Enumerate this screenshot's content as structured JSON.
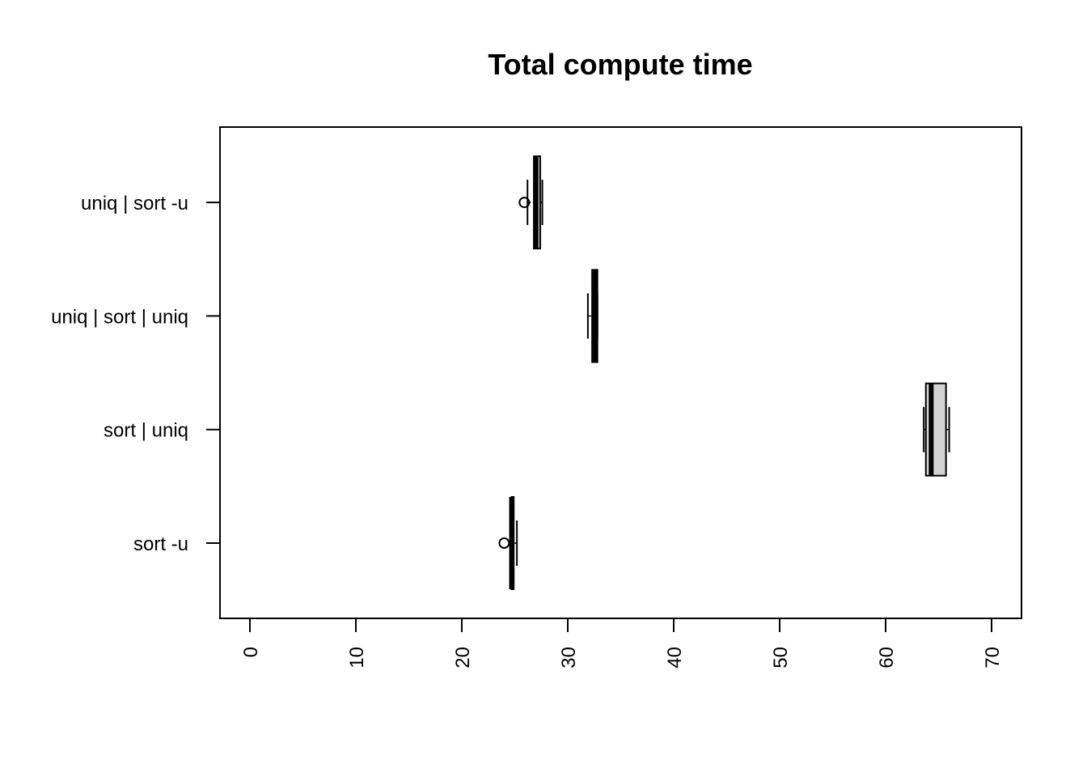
{
  "chart_data": {
    "type": "boxplot",
    "orientation": "horizontal",
    "title": "Total compute time",
    "xlabel": "",
    "ylabel": "",
    "xlim": [
      0,
      70
    ],
    "x_ticks": [
      0,
      10,
      20,
      30,
      40,
      50,
      60,
      70
    ],
    "x_tick_labels": [
      "0",
      "10",
      "20",
      "30",
      "40",
      "50",
      "60",
      "70"
    ],
    "grid": false,
    "box_fill": "#d3d3d3",
    "categories": [
      "sort -u",
      "sort | uniq",
      "uniq | sort | uniq",
      "uniq | sort -u"
    ],
    "boxes": [
      {
        "label": "sort -u",
        "whisker_low": 24.7,
        "q1": 24.7,
        "median": 24.7,
        "q3": 24.9,
        "whisker_high": 25.2,
        "outliers": [
          24.0
        ]
      },
      {
        "label": "sort | uniq",
        "whisker_low": 63.6,
        "q1": 63.8,
        "median": 64.3,
        "q3": 65.7,
        "whisker_high": 66.0,
        "outliers": []
      },
      {
        "label": "uniq | sort | uniq",
        "whisker_low": 31.9,
        "q1": 32.3,
        "median": 32.6,
        "q3": 32.8,
        "whisker_high": 32.8,
        "outliers": []
      },
      {
        "label": "uniq | sort -u",
        "whisker_low": 26.2,
        "q1": 26.8,
        "median": 27.0,
        "q3": 27.4,
        "whisker_high": 27.6,
        "outliers": [
          25.9
        ]
      }
    ]
  }
}
